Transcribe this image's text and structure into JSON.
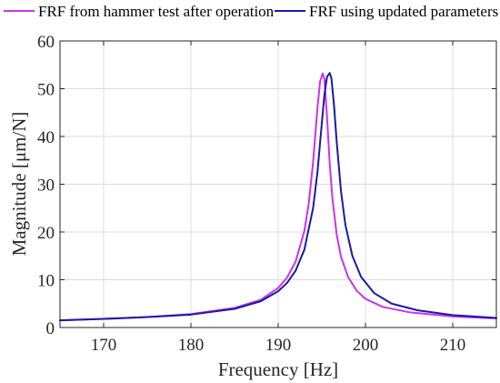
{
  "chart_data": {
    "type": "line",
    "xlabel": "Frequency [Hz]",
    "ylabel": "Magnitude [μm/N]",
    "xlim": [
      165,
      215
    ],
    "ylim": [
      0,
      60
    ],
    "xticks": [
      170,
      180,
      190,
      200,
      210
    ],
    "yticks": [
      0,
      10,
      20,
      30,
      40,
      50,
      60
    ],
    "grid": true,
    "legend_position": "top",
    "series": [
      {
        "name": "FRF from hammer test after operation",
        "color": "#cc33e6",
        "x": [
          165,
          170,
          175,
          180,
          185,
          188,
          190,
          191,
          192,
          193,
          193.5,
          194,
          194.5,
          194.8,
          195.1,
          195.3,
          195.6,
          195.9,
          196.2,
          196.7,
          197.2,
          198,
          199,
          200,
          202,
          205,
          210,
          215
        ],
        "y": [
          1.5,
          1.8,
          2.2,
          2.8,
          4.1,
          5.8,
          8.3,
          10.4,
          13.8,
          20.2,
          25.9,
          34.6,
          46.0,
          51.5,
          53.2,
          52.0,
          44.0,
          34.5,
          27.3,
          19.5,
          14.8,
          10.6,
          7.7,
          6.0,
          4.3,
          3.2,
          2.3,
          1.9
        ]
      },
      {
        "name": "FRF using updated parameters",
        "color": "#1a1aa3",
        "x": [
          165,
          170,
          175,
          180,
          185,
          188,
          190,
          191,
          192,
          193,
          194,
          194.5,
          195,
          195.3,
          195.6,
          195.9,
          196.1,
          196.4,
          196.7,
          197.2,
          197.7,
          198.5,
          199.5,
          201,
          203,
          206,
          210,
          215
        ],
        "y": [
          1.5,
          1.8,
          2.2,
          2.7,
          3.9,
          5.5,
          7.6,
          9.3,
          11.9,
          16.3,
          25.0,
          32.5,
          42.8,
          48.8,
          52.5,
          53.3,
          52.2,
          46.5,
          39.0,
          28.5,
          21.5,
          15.0,
          10.6,
          7.2,
          5.0,
          3.6,
          2.6,
          2.0
        ]
      }
    ]
  }
}
